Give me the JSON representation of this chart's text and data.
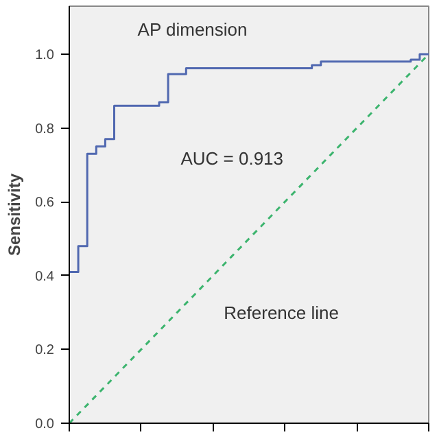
{
  "chart_data": {
    "type": "step",
    "ylabel": "Sensitivity",
    "ylim": [
      0,
      1.13
    ],
    "categories": [
      null,
      null,
      null,
      null,
      null,
      null,
      null,
      null,
      null,
      null,
      null,
      null,
      null,
      null,
      null,
      null,
      null,
      null,
      null,
      null,
      null,
      null,
      null,
      null,
      null,
      null,
      null,
      null,
      null,
      null,
      null,
      null,
      null,
      null,
      null,
      null,
      null,
      null,
      null,
      null,
      null
    ],
    "yticks": [
      {
        "value": 0,
        "label": "0.0"
      },
      {
        "value": 0.2,
        "label": "0.2"
      },
      {
        "value": 0.4,
        "label": "0.4"
      },
      {
        "value": 0.6,
        "label": "0.6"
      },
      {
        "value": 0.8,
        "label": "0.8"
      },
      {
        "value": 1.0,
        "label": "1.0"
      }
    ],
    "tick_labels": "y",
    "grid": false,
    "series": [
      {
        "color": "#5068b0",
        "line_style": "solid",
        "values": [
          0.41,
          0.48,
          0.73,
          0.75,
          0.77,
          0.86,
          0.86,
          0.86,
          0.86,
          0.86,
          0.87,
          0.946,
          0.946,
          0.962,
          0.962,
          0.962,
          0.962,
          0.962,
          0.962,
          0.962,
          0.962,
          0.962,
          0.962,
          0.962,
          0.962,
          0.962,
          0.962,
          0.97,
          0.98,
          0.98,
          0.98,
          0.98,
          0.98,
          0.98,
          0.98,
          0.98,
          0.98,
          0.98,
          0.985,
          1.0,
          1.0
        ]
      },
      {
        "type": "line",
        "color": "#3cb46e",
        "line_style": "dashed",
        "values": [
          0,
          0.025,
          0.05,
          0.075,
          0.1,
          0.125,
          0.15,
          0.175,
          0.2,
          0.225,
          0.25,
          0.275,
          0.3,
          0.325,
          0.35,
          0.375,
          0.4,
          0.425,
          0.45,
          0.475,
          0.5,
          0.525,
          0.55,
          0.575,
          0.6,
          0.625,
          0.65,
          0.675,
          0.7,
          0.725,
          0.75,
          0.775,
          0.8,
          0.825,
          0.85,
          0.875,
          0.9,
          0.925,
          0.95,
          0.975,
          1.0
        ]
      }
    ],
    "annotations": [
      "AP dimension",
      "AUC = 0.913",
      "Reference line"
    ]
  }
}
